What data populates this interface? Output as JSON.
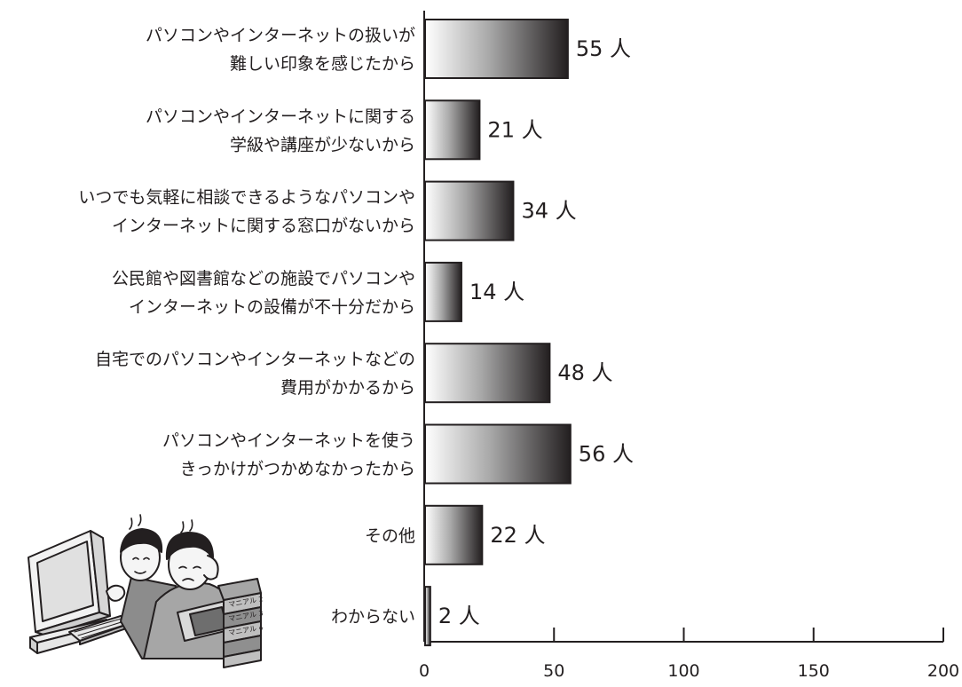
{
  "chart_data": {
    "type": "bar",
    "orientation": "horizontal",
    "categories": [
      [
        "パソコンやインターネットの扱いが",
        "難しい印象を感じたから"
      ],
      [
        "パソコンやインターネットに関する",
        "学級や講座が少ないから"
      ],
      [
        "いつでも気軽に相談できるようなパソコンや",
        "インターネットに関する窓口がないから"
      ],
      [
        "公民館や図書館などの施設でパソコンや",
        "インターネットの設備が不十分だから"
      ],
      [
        "自宅でのパソコンやインターネットなどの",
        "費用がかかるから"
      ],
      [
        "パソコンやインターネットを使う",
        "きっかけがつかめなかったから"
      ],
      [
        "その他"
      ],
      [
        "わからない"
      ]
    ],
    "values": [
      55,
      21,
      34,
      14,
      48,
      56,
      22,
      2
    ],
    "value_labels": [
      "55 人",
      "21 人",
      "34 人",
      "14 人",
      "48 人",
      "56 人",
      "22 人",
      "2 人"
    ],
    "xlim": [
      0,
      200
    ],
    "xticks": [
      0,
      50,
      100,
      150,
      200
    ],
    "xtick_labels": [
      "0",
      "50",
      "100",
      "150",
      "200"
    ],
    "grid": false,
    "bar_fill": "gradient white-to-black",
    "colors": {
      "bar_light": "#ffffff",
      "bar_dark": "#231f20",
      "axis": "#231f20"
    }
  },
  "illustration": {
    "name": "worried-men-at-computer-illustration",
    "manual_labels": [
      "マニアル 2",
      "マニアル 3",
      "マニアル 4"
    ]
  }
}
